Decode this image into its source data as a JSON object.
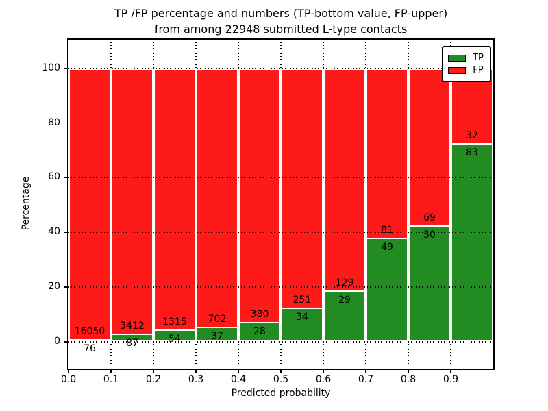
{
  "chart_data": {
    "type": "bar",
    "stacked": true,
    "normalized": "each bin scaled so TP+FP = 100%",
    "title_line1": "TP /FP percentage and numbers (TP-bottom value, FP-upper)",
    "title_line2": "from among 22948 submitted L-type contacts",
    "total_contacts": 22948,
    "xlabel": "Predicted probability",
    "ylabel": "Percentage",
    "bin_width": 0.1,
    "bin_starts": [
      0.0,
      0.1,
      0.2,
      0.3,
      0.4,
      0.5,
      0.6,
      0.7,
      0.8,
      0.9
    ],
    "series": [
      {
        "name": "TP",
        "color": "#228b22",
        "counts": [
          76,
          87,
          54,
          37,
          28,
          34,
          29,
          49,
          50,
          83
        ]
      },
      {
        "name": "FP",
        "color": "#ff1a1a",
        "counts": [
          16050,
          3412,
          1315,
          702,
          380,
          251,
          129,
          81,
          69,
          32
        ]
      }
    ],
    "tp_percent_approx": [
      0.5,
      2.5,
      3.9,
      5.0,
      6.9,
      11.9,
      18.4,
      37.7,
      42.0,
      72.2
    ],
    "xlim": [
      0.0,
      1.0
    ],
    "ylim": [
      -9.8,
      110.5
    ],
    "xtick_values": [
      0.0,
      0.1,
      0.2,
      0.3,
      0.4,
      0.5,
      0.6,
      0.7,
      0.8,
      0.9
    ],
    "xtick_labels": [
      "0.0",
      "0.1",
      "0.2",
      "0.3",
      "0.4",
      "0.5",
      "0.6",
      "0.7",
      "0.8",
      "0.9"
    ],
    "ytick_values": [
      0,
      20,
      40,
      60,
      80,
      100
    ],
    "ytick_labels": [
      "0",
      "20",
      "40",
      "60",
      "80",
      "100"
    ],
    "grid": {
      "style": "dotted",
      "color": "#000000"
    },
    "legend": {
      "position": "upper right",
      "entries": [
        {
          "label": "TP",
          "color": "#228b22"
        },
        {
          "label": "FP",
          "color": "#ff1a1a"
        }
      ]
    },
    "colors": {
      "axis": "#000000",
      "bar_edge": "#ffffff",
      "background": "#ffffff"
    }
  }
}
